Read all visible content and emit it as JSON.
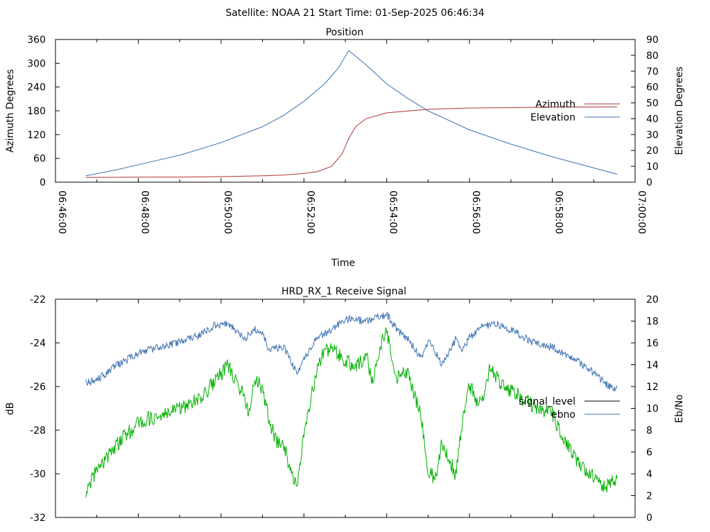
{
  "page": {
    "title": "Satellite: NOAA 21    Start Time: 01-Sep-2025 06:46:34"
  },
  "colors": {
    "azimuth": "#b03030",
    "elevation": "#3a6fb0",
    "signal_level": "#000000",
    "ebno": "#3a6fb0",
    "signal_trace": "#00b000"
  },
  "chart_data": [
    {
      "type": "line",
      "title": "Position",
      "xlabel": "Time",
      "ylabel": "Azimuth Degrees",
      "y2label": "Elevation Degrees",
      "x_ticks": [
        "06:46:00",
        "06:48:00",
        "06:50:00",
        "06:52:00",
        "06:54:00",
        "06:56:00",
        "06:58:00",
        "07:00:00"
      ],
      "xlim": [
        "06:46:00",
        "07:00:00"
      ],
      "ylim": [
        0,
        360
      ],
      "y_ticks": [
        "0",
        "60",
        "120",
        "180",
        "240",
        "300",
        "360"
      ],
      "y2lim": [
        0,
        90
      ],
      "y2_ticks": [
        "0",
        "10",
        "20",
        "30",
        "40",
        "50",
        "60",
        "70",
        "80",
        "90"
      ],
      "legend_position": "right",
      "series": [
        {
          "name": "Azimuth",
          "axis": "left",
          "color": "#b03030",
          "points": [
            [
              "06:46:44",
              12
            ],
            [
              "06:48:00",
              12.5
            ],
            [
              "06:49:00",
              13
            ],
            [
              "06:50:00",
              14
            ],
            [
              "06:51:00",
              16
            ],
            [
              "06:51:30",
              18
            ],
            [
              "06:52:00",
              22
            ],
            [
              "06:52:20",
              27
            ],
            [
              "06:52:40",
              40
            ],
            [
              "06:52:55",
              70
            ],
            [
              "06:53:05",
              110
            ],
            [
              "06:53:15",
              140
            ],
            [
              "06:53:30",
              160
            ],
            [
              "06:54:00",
              175
            ],
            [
              "06:55:00",
              184
            ],
            [
              "06:56:00",
              187
            ],
            [
              "06:58:00",
              189
            ],
            [
              "06:59:34",
              190
            ]
          ]
        },
        {
          "name": "Elevation",
          "axis": "right",
          "color": "#3a6fb0",
          "points": [
            [
              "06:46:44",
              4
            ],
            [
              "06:47:30",
              8
            ],
            [
              "06:48:00",
              11
            ],
            [
              "06:49:00",
              17
            ],
            [
              "06:50:00",
              25
            ],
            [
              "06:51:00",
              35
            ],
            [
              "06:51:30",
              42
            ],
            [
              "06:52:00",
              51
            ],
            [
              "06:52:30",
              62
            ],
            [
              "06:52:50",
              72
            ],
            [
              "06:53:05",
              83
            ],
            [
              "06:53:30",
              74
            ],
            [
              "06:54:00",
              62
            ],
            [
              "06:54:30",
              53
            ],
            [
              "06:55:00",
              45
            ],
            [
              "06:56:00",
              33
            ],
            [
              "06:57:00",
              24
            ],
            [
              "06:58:00",
              16
            ],
            [
              "06:59:00",
              9
            ],
            [
              "06:59:34",
              5
            ]
          ]
        }
      ]
    },
    {
      "type": "line",
      "title": "HRD_RX_1 Receive Signal",
      "ylabel": "dB",
      "y2label": "Eb/No",
      "xlim": [
        "06:46:00",
        "07:00:00"
      ],
      "ylim": [
        -32,
        -22
      ],
      "y_ticks": [
        "-32",
        "-30",
        "-28",
        "-26",
        "-24",
        "-22"
      ],
      "y2lim": [
        0,
        20
      ],
      "y2_ticks": [
        "0",
        "2",
        "4",
        "6",
        "8",
        "10",
        "12",
        "14",
        "16",
        "18",
        "20"
      ],
      "legend_position": "right",
      "series": [
        {
          "name": "signal_level",
          "axis": "left",
          "color": "#00b000",
          "points": [
            [
              "06:46:44",
              -30.8
            ],
            [
              "06:47:00",
              -29.8
            ],
            [
              "06:47:30",
              -28.6
            ],
            [
              "06:48:00",
              -27.7
            ],
            [
              "06:48:30",
              -27.3
            ],
            [
              "06:49:00",
              -27.0
            ],
            [
              "06:49:30",
              -26.6
            ],
            [
              "06:50:00",
              -25.4
            ],
            [
              "06:50:10",
              -25.0
            ],
            [
              "06:50:30",
              -26.3
            ],
            [
              "06:50:40",
              -27.2
            ],
            [
              "06:50:50",
              -25.6
            ],
            [
              "06:51:00",
              -26.2
            ],
            [
              "06:51:10",
              -27.6
            ],
            [
              "06:51:20",
              -28.5
            ],
            [
              "06:51:30",
              -28.5
            ],
            [
              "06:51:40",
              -29.9
            ],
            [
              "06:51:50",
              -30.6
            ],
            [
              "06:52:00",
              -28.1
            ],
            [
              "06:52:10",
              -26.6
            ],
            [
              "06:52:20",
              -25.1
            ],
            [
              "06:52:30",
              -24.4
            ],
            [
              "06:52:40",
              -24.3
            ],
            [
              "06:53:00",
              -24.8
            ],
            [
              "06:53:15",
              -25.2
            ],
            [
              "06:53:30",
              -24.5
            ],
            [
              "06:53:40",
              -25.8
            ],
            [
              "06:53:50",
              -24.2
            ],
            [
              "06:54:00",
              -23.5
            ],
            [
              "06:54:15",
              -25.6
            ],
            [
              "06:54:30",
              -25.3
            ],
            [
              "06:54:50",
              -27.4
            ],
            [
              "06:55:00",
              -29.8
            ],
            [
              "06:55:10",
              -30.3
            ],
            [
              "06:55:20",
              -28.6
            ],
            [
              "06:55:30",
              -29.2
            ],
            [
              "06:55:40",
              -30.1
            ],
            [
              "06:55:50",
              -27.6
            ],
            [
              "06:56:00",
              -25.9
            ],
            [
              "06:56:10",
              -26.7
            ],
            [
              "06:56:20",
              -26.5
            ],
            [
              "06:56:30",
              -25.0
            ],
            [
              "06:56:45",
              -25.9
            ],
            [
              "06:57:00",
              -26.2
            ],
            [
              "06:57:30",
              -26.8
            ],
            [
              "06:58:00",
              -27.3
            ],
            [
              "06:58:20",
              -28.6
            ],
            [
              "06:58:40",
              -29.6
            ],
            [
              "06:59:00",
              -30.1
            ],
            [
              "06:59:15",
              -30.6
            ],
            [
              "06:59:34",
              -30.3
            ]
          ]
        },
        {
          "name": "ebno",
          "axis": "right",
          "color": "#3a6fb0",
          "points": [
            [
              "06:46:44",
              12.3
            ],
            [
              "06:47:00",
              12.6
            ],
            [
              "06:47:30",
              14.0
            ],
            [
              "06:48:00",
              15.1
            ],
            [
              "06:48:30",
              15.6
            ],
            [
              "06:49:00",
              16.1
            ],
            [
              "06:49:30",
              16.8
            ],
            [
              "06:49:50",
              17.6
            ],
            [
              "06:50:10",
              17.7
            ],
            [
              "06:50:20",
              17.3
            ],
            [
              "06:50:35",
              16.4
            ],
            [
              "06:50:50",
              17.3
            ],
            [
              "06:51:00",
              16.8
            ],
            [
              "06:51:10",
              15.4
            ],
            [
              "06:51:30",
              15.7
            ],
            [
              "06:51:50",
              13.2
            ],
            [
              "06:52:00",
              14.5
            ],
            [
              "06:52:20",
              16.5
            ],
            [
              "06:52:40",
              17.2
            ],
            [
              "06:53:00",
              18.2
            ],
            [
              "06:53:30",
              18.0
            ],
            [
              "06:54:00",
              18.6
            ],
            [
              "06:54:15",
              17.2
            ],
            [
              "06:54:30",
              16.4
            ],
            [
              "06:54:50",
              14.6
            ],
            [
              "06:55:00",
              16.2
            ],
            [
              "06:55:10",
              15.3
            ],
            [
              "06:55:20",
              14.0
            ],
            [
              "06:55:40",
              16.3
            ],
            [
              "06:55:50",
              15.4
            ],
            [
              "06:56:00",
              16.5
            ],
            [
              "06:56:20",
              17.6
            ],
            [
              "06:56:40",
              17.7
            ],
            [
              "06:57:00",
              17.2
            ],
            [
              "06:57:30",
              16.1
            ],
            [
              "06:58:00",
              15.6
            ],
            [
              "06:58:30",
              14.6
            ],
            [
              "06:59:00",
              13.3
            ],
            [
              "06:59:20",
              12.1
            ],
            [
              "06:59:34",
              11.8
            ]
          ]
        }
      ]
    }
  ]
}
